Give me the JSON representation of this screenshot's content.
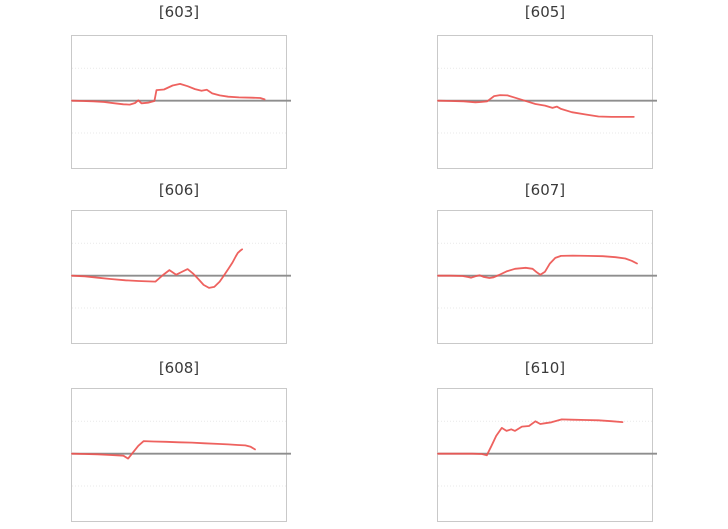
{
  "page": {
    "background": "#ffffff"
  },
  "style": {
    "series_color": "#ed5551",
    "zero_line_color": "#8e8e8e",
    "grid_color": "#e9e9e9",
    "plot_border_color": "#c9c9c9",
    "title_color": "#3a3a3a"
  },
  "chart_data": [
    {
      "type": "line",
      "title": "[603]",
      "x": [
        0,
        0.05,
        0.1,
        0.15,
        0.2,
        0.24,
        0.27,
        0.295,
        0.31,
        0.325,
        0.355,
        0.385,
        0.395,
        0.43,
        0.47,
        0.505,
        0.54,
        0.575,
        0.605,
        0.63,
        0.655,
        0.69,
        0.73,
        0.78,
        0.84,
        0.88,
        0.9
      ],
      "y": [
        0,
        -0.005,
        -0.01,
        -0.02,
        -0.04,
        -0.055,
        -0.06,
        -0.035,
        0.005,
        -0.04,
        -0.03,
        -0.005,
        0.16,
        0.17,
        0.23,
        0.255,
        0.22,
        0.175,
        0.15,
        0.165,
        0.11,
        0.08,
        0.06,
        0.05,
        0.045,
        0.04,
        0.02
      ],
      "ylim": [
        -1.02,
        0.98
      ],
      "grid_y": [
        0.49,
        -0.49
      ],
      "zero_line_y": 0,
      "x_range": [
        0,
        1
      ],
      "legend": "none",
      "axis_labels": "none"
    },
    {
      "type": "line",
      "title": "[605]",
      "x": [
        0,
        0.06,
        0.12,
        0.175,
        0.2,
        0.23,
        0.262,
        0.29,
        0.325,
        0.36,
        0.405,
        0.455,
        0.5,
        0.535,
        0.555,
        0.575,
        0.625,
        0.69,
        0.75,
        0.81,
        0.87,
        0.915
      ],
      "y": [
        0,
        -0.005,
        -0.01,
        -0.025,
        -0.02,
        -0.01,
        0.07,
        0.085,
        0.08,
        0.045,
        0.0,
        -0.05,
        -0.075,
        -0.11,
        -0.09,
        -0.125,
        -0.175,
        -0.21,
        -0.24,
        -0.245,
        -0.245,
        -0.245
      ],
      "ylim": [
        -1.02,
        0.98
      ],
      "grid_y": [
        0.49,
        -0.49
      ],
      "zero_line_y": 0,
      "x_range": [
        0,
        1
      ],
      "legend": "none",
      "axis_labels": "none"
    },
    {
      "type": "line",
      "title": "[606]",
      "x": [
        0,
        0.06,
        0.12,
        0.18,
        0.25,
        0.31,
        0.39,
        0.425,
        0.455,
        0.487,
        0.512,
        0.54,
        0.565,
        0.59,
        0.615,
        0.64,
        0.665,
        0.69,
        0.705,
        0.73,
        0.75,
        0.765,
        0.775,
        0.785,
        0.795
      ],
      "y": [
        0,
        -0.01,
        -0.03,
        -0.05,
        -0.07,
        -0.08,
        -0.09,
        0.01,
        0.085,
        0.015,
        0.055,
        0.1,
        0.035,
        -0.05,
        -0.14,
        -0.185,
        -0.17,
        -0.09,
        -0.02,
        0.1,
        0.2,
        0.29,
        0.345,
        0.375,
        0.4
      ],
      "ylim": [
        -1.02,
        0.98
      ],
      "grid_y": [
        0.49,
        -0.49
      ],
      "zero_line_y": 0,
      "x_range": [
        0,
        1
      ],
      "legend": "none",
      "axis_labels": "none"
    },
    {
      "type": "line",
      "title": "[607]",
      "x": [
        0,
        0.06,
        0.115,
        0.14,
        0.155,
        0.175,
        0.195,
        0.215,
        0.24,
        0.26,
        0.285,
        0.32,
        0.36,
        0.41,
        0.442,
        0.462,
        0.478,
        0.5,
        0.522,
        0.548,
        0.575,
        0.63,
        0.7,
        0.77,
        0.83,
        0.875,
        0.905,
        0.93
      ],
      "y": [
        0,
        0,
        -0.005,
        -0.02,
        -0.03,
        -0.01,
        0.005,
        -0.02,
        -0.035,
        -0.025,
        0.01,
        0.065,
        0.105,
        0.12,
        0.105,
        0.05,
        0.015,
        0.06,
        0.18,
        0.27,
        0.3,
        0.305,
        0.3,
        0.295,
        0.28,
        0.26,
        0.225,
        0.185
      ],
      "ylim": [
        -1.02,
        0.98
      ],
      "grid_y": [
        0.49,
        -0.49
      ],
      "zero_line_y": 0,
      "x_range": [
        0,
        1
      ],
      "legend": "none",
      "axis_labels": "none"
    },
    {
      "type": "line",
      "title": "[608]",
      "x": [
        0,
        0.06,
        0.12,
        0.18,
        0.24,
        0.262,
        0.285,
        0.31,
        0.335,
        0.38,
        0.44,
        0.5,
        0.56,
        0.62,
        0.68,
        0.73,
        0.775,
        0.81,
        0.835,
        0.855
      ],
      "y": [
        0,
        -0.005,
        -0.01,
        -0.02,
        -0.03,
        -0.075,
        0.02,
        0.12,
        0.19,
        0.185,
        0.18,
        0.172,
        0.168,
        0.158,
        0.148,
        0.14,
        0.132,
        0.125,
        0.105,
        0.065
      ],
      "ylim": [
        -1.02,
        0.98
      ],
      "grid_y": [
        0.49,
        -0.49
      ],
      "zero_line_y": 0,
      "x_range": [
        0,
        1
      ],
      "legend": "none",
      "axis_labels": "none"
    },
    {
      "type": "line",
      "title": "[610]",
      "x": [
        0,
        0.08,
        0.16,
        0.205,
        0.228,
        0.25,
        0.272,
        0.298,
        0.32,
        0.342,
        0.36,
        0.392,
        0.425,
        0.455,
        0.478,
        0.502,
        0.53,
        0.578,
        0.625,
        0.69,
        0.75,
        0.81,
        0.862
      ],
      "y": [
        0,
        0,
        0,
        -0.005,
        -0.025,
        0.12,
        0.27,
        0.39,
        0.345,
        0.37,
        0.345,
        0.41,
        0.42,
        0.49,
        0.45,
        0.462,
        0.475,
        0.52,
        0.515,
        0.51,
        0.505,
        0.492,
        0.478
      ],
      "ylim": [
        -1.02,
        0.98
      ],
      "grid_y": [
        0.49,
        -0.49
      ],
      "zero_line_y": 0,
      "x_range": [
        0,
        1
      ],
      "legend": "none",
      "axis_labels": "none"
    }
  ]
}
